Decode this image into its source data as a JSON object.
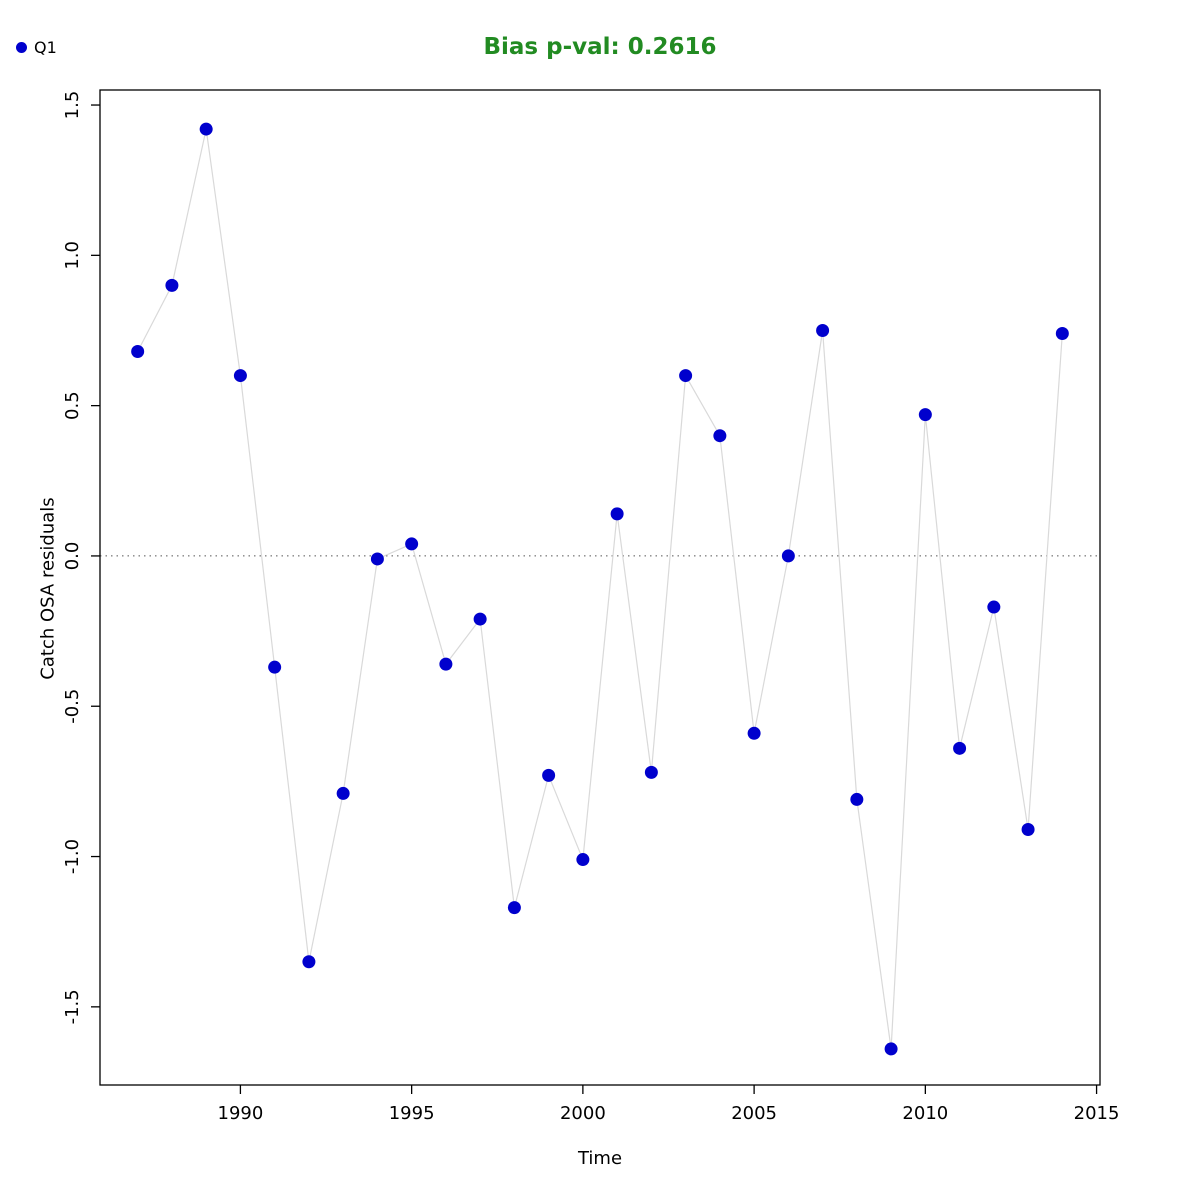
{
  "title_text": "Bias p-val: 0.2616",
  "legend": {
    "label": "Q1"
  },
  "colors": {
    "title": "#228B22",
    "point": "#0000cd",
    "connector_line": "#d9d9d9",
    "axis": "#000000",
    "zero_line": "#555555"
  },
  "chart_data": {
    "type": "scatter",
    "title": "Bias p-val: 0.2616",
    "xlabel": "Time",
    "ylabel": "Catch OSA residuals",
    "legend_entries": [
      "Q1"
    ],
    "legend_position": "top-left",
    "grid": false,
    "zero_reference_line": 0.0,
    "xlim": [
      1985.9,
      2015.1
    ],
    "ylim": [
      -1.76,
      1.55
    ],
    "xticks": {
      "values": [
        1990,
        1995,
        2000,
        2005,
        2010,
        2015
      ],
      "labels": [
        "1990",
        "1995",
        "2000",
        "2005",
        "2010",
        "2015"
      ]
    },
    "yticks": {
      "values": [
        -1.5,
        -1.0,
        -0.5,
        0.0,
        0.5,
        1.0,
        1.5
      ],
      "labels": [
        "-1.5",
        "-1.0",
        "-0.5",
        "0.0",
        "0.5",
        "1.0",
        "1.5"
      ]
    },
    "x": [
      1987,
      1988,
      1989,
      1990,
      1991,
      1992,
      1993,
      1994,
      1995,
      1996,
      1997,
      1998,
      1999,
      2000,
      2001,
      2002,
      2003,
      2004,
      2005,
      2006,
      2007,
      2008,
      2009,
      2010,
      2011,
      2012,
      2013,
      2014
    ],
    "values": [
      0.68,
      0.9,
      1.42,
      0.6,
      -0.37,
      -1.35,
      -0.79,
      -0.01,
      0.04,
      -0.36,
      -0.21,
      -1.17,
      -0.73,
      -1.01,
      0.14,
      -0.72,
      0.6,
      0.4,
      -0.59,
      0.0,
      0.75,
      -0.81,
      -1.64,
      0.47,
      -0.64,
      -0.17,
      -0.91,
      0.74
    ]
  }
}
